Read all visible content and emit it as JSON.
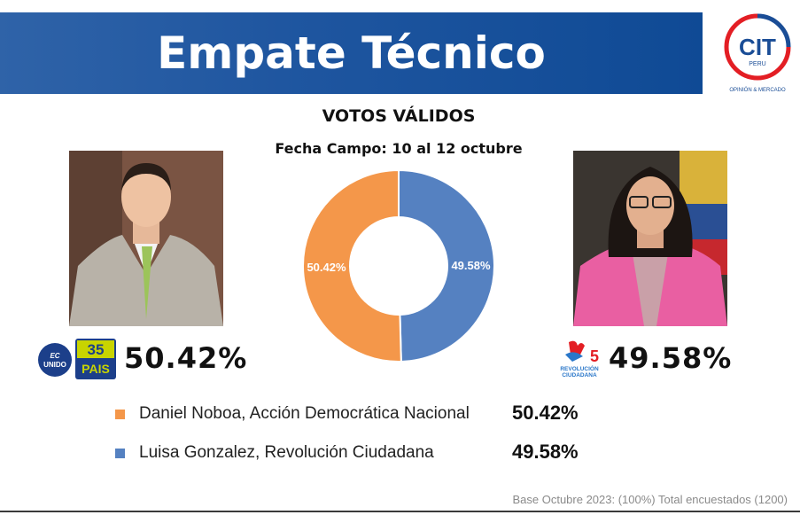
{
  "header": {
    "title": "Empate Técnico"
  },
  "logo": {
    "main": "CIT",
    "small": "PERU",
    "tagline": "OPINIÓN & MERCADO"
  },
  "subtitle": "VOTOS VÁLIDOS",
  "fieldwork": "Fecha Campo: 10 al 12 octubre",
  "candidates": [
    {
      "party_logo_text": [
        "EC",
        "UNIDO"
      ],
      "party_logo_text2": [
        "35",
        "PAIS"
      ],
      "pct": "50.42%"
    },
    {
      "party_logo_text": [
        "REVOLUCIÓN",
        "CIUDADANA"
      ],
      "pct": "49.58%"
    }
  ],
  "chart_data": {
    "type": "pie",
    "title": "VOTOS VÁLIDOS",
    "categories": [
      "Daniel Noboa, Acción Democrática Nacional",
      "Luisa Gonzalez, Revolución Ciudadana"
    ],
    "values": [
      50.42,
      49.58
    ],
    "colors": [
      "#f4974a",
      "#5581c1"
    ],
    "labels": [
      "50.42%",
      "49.58%"
    ],
    "donut": true,
    "legend_position": "bottom"
  },
  "legend": [
    {
      "label": "Daniel Noboa, Acción Democrática Nacional",
      "value": "50.42%",
      "color": "#f4974a"
    },
    {
      "label": "Luisa Gonzalez, Revolución Ciudadana",
      "value": "49.58%",
      "color": "#5581c1"
    }
  ],
  "footer": "Base Octubre 2023: (100%) Total encuestados (1200)"
}
